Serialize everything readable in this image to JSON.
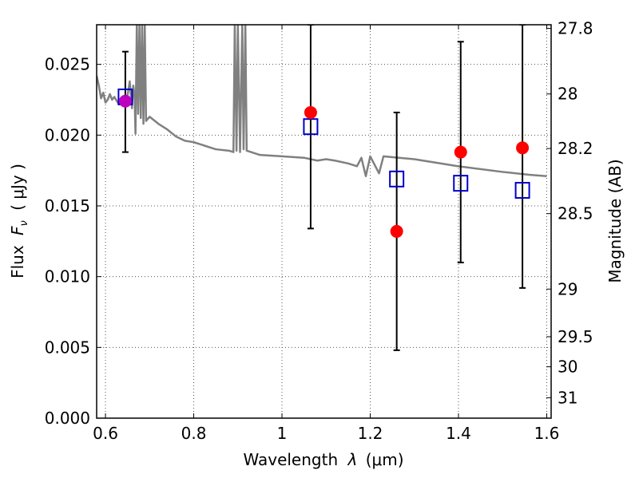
{
  "chart_data": {
    "type": "scatter",
    "title": "",
    "xlabel_prefix": "Wavelength",
    "xlabel_symbol": "λ",
    "xlabel_units": "(μm)",
    "ylabel_prefix": "Flux",
    "ylabel_symbol": "F",
    "ylabel_subscript": "ν",
    "ylabel_units": "( μJy )",
    "y2label": "Magnitude (AB)",
    "xlim": [
      0.58,
      1.61
    ],
    "ylim": [
      0.0,
      0.0278
    ],
    "grid": true,
    "x_ticks": [
      0.6,
      0.8,
      1.0,
      1.2,
      1.4,
      1.6
    ],
    "x_tick_labels": [
      "0.6",
      "0.8",
      "1",
      "1.2",
      "1.4",
      "1.6"
    ],
    "y_ticks": [
      0.0,
      0.005,
      0.01,
      0.015,
      0.02,
      0.025
    ],
    "y_tick_labels": [
      "0.000",
      "0.005",
      "0.010",
      "0.015",
      "0.020",
      "0.025"
    ],
    "y2_ticks": [
      27.8,
      28.0,
      28.2,
      28.5,
      29.0,
      29.5,
      30.0,
      31.0
    ],
    "y2_tick_labels": [
      "27.8",
      "28",
      "28.2",
      "28.5",
      "29",
      "29.5",
      "30",
      "31"
    ],
    "colors": {
      "model": "#808080",
      "observed": "#ff0000",
      "model_photometry": "#0000cc",
      "highlight": "#bf00bf",
      "errorbar": "#000000",
      "grid": "#555555"
    },
    "series": [
      {
        "kind": "spectrum",
        "x": [
          0.58,
          0.585,
          0.59,
          0.595,
          0.6,
          0.605,
          0.61,
          0.615,
          0.62,
          0.63,
          0.64,
          0.65,
          0.655,
          0.66,
          0.663,
          0.666,
          0.668,
          0.671,
          0.674,
          0.677,
          0.68,
          0.683,
          0.686,
          0.689,
          0.692,
          0.7,
          0.72,
          0.74,
          0.76,
          0.78,
          0.8,
          0.82,
          0.85,
          0.88,
          0.89,
          0.893,
          0.897,
          0.9,
          0.905,
          0.91,
          0.913,
          0.917,
          0.92,
          0.93,
          0.95,
          1.0,
          1.05,
          1.08,
          1.1,
          1.12,
          1.15,
          1.17,
          1.18,
          1.19,
          1.2,
          1.22,
          1.23,
          1.3,
          1.4,
          1.5,
          1.56,
          1.6
        ],
        "y": [
          0.0242,
          0.0235,
          0.0226,
          0.023,
          0.0223,
          0.0225,
          0.0229,
          0.0225,
          0.0227,
          0.0222,
          0.0224,
          0.0228,
          0.0238,
          0.0219,
          0.0235,
          0.0228,
          0.0201,
          0.0278,
          0.0215,
          0.0278,
          0.0212,
          0.0278,
          0.0208,
          0.0278,
          0.021,
          0.0213,
          0.0208,
          0.0204,
          0.0199,
          0.0196,
          0.0195,
          0.0193,
          0.019,
          0.0189,
          0.0188,
          0.0278,
          0.0189,
          0.0278,
          0.0188,
          0.0278,
          0.019,
          0.0278,
          0.0189,
          0.0188,
          0.0186,
          0.0185,
          0.0184,
          0.0182,
          0.0183,
          0.0182,
          0.018,
          0.0178,
          0.0184,
          0.0171,
          0.0185,
          0.0173,
          0.0185,
          0.0183,
          0.0178,
          0.0174,
          0.0172,
          0.0171
        ]
      },
      {
        "kind": "observed",
        "x": [
          0.645,
          1.065,
          1.26,
          1.405,
          1.545
        ],
        "y": [
          0.0224,
          0.0216,
          0.0132,
          0.0188,
          0.0191
        ],
        "err_low": [
          0.0188,
          0.0134,
          0.0048,
          0.011,
          0.0092
        ],
        "err_high": [
          0.0259,
          0.0278,
          0.0216,
          0.0266,
          0.0278
        ]
      },
      {
        "kind": "model_photometry",
        "x": [
          0.645,
          1.065,
          1.26,
          1.405,
          1.545
        ],
        "y": [
          0.0227,
          0.0206,
          0.0169,
          0.0166,
          0.0161
        ]
      }
    ]
  }
}
